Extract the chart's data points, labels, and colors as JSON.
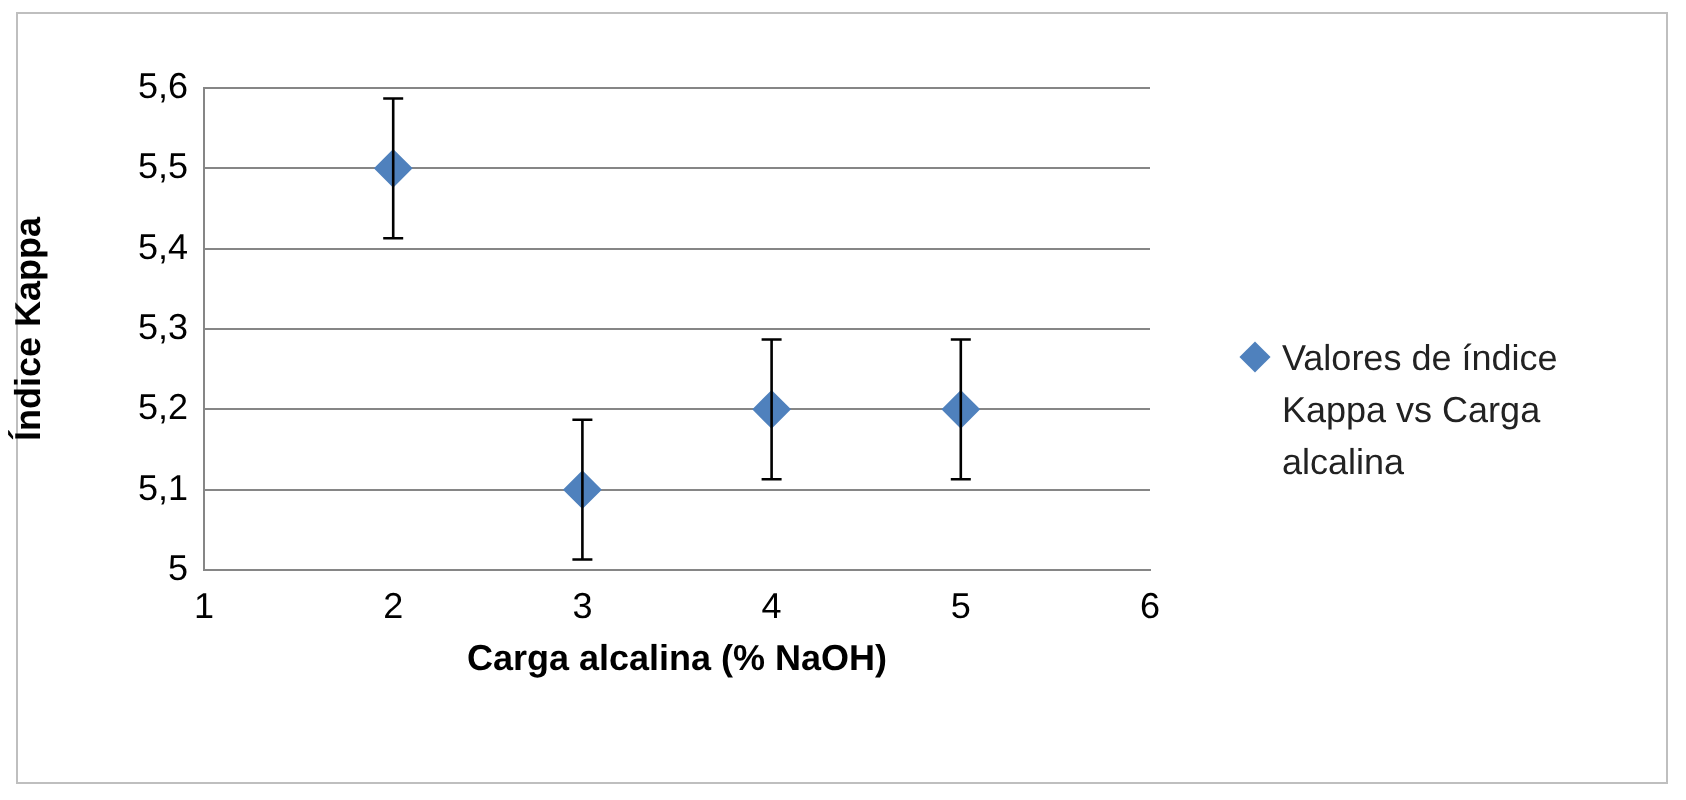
{
  "chart_data": {
    "type": "scatter",
    "xlabel": "Carga alcalina (% NaOH)",
    "ylabel": "Índice Kappa",
    "xlim": [
      1,
      6
    ],
    "xticks": [
      1,
      2,
      3,
      4,
      5,
      6
    ],
    "ylim": [
      5,
      5.6
    ],
    "yticks": [
      5,
      {
        "value": 5.1,
        "label": "5,1"
      },
      {
        "value": 5.2,
        "label": "5,2"
      },
      {
        "value": 5.3,
        "label": "5,3"
      },
      {
        "value": 5.4,
        "label": "5,4"
      },
      {
        "value": 5.5,
        "label": "5,5"
      },
      {
        "value": 5.6,
        "label": "5,6"
      }
    ],
    "grid": "y",
    "legend": "right",
    "marker": "diamond",
    "series": [
      {
        "name": "Valores de índice Kappa vs Carga alcalina",
        "color": "#4f81bd",
        "x": [
          2,
          3,
          4,
          5
        ],
        "values": [
          5.5,
          5.1,
          5.2,
          5.2
        ],
        "errors": [
          0.087,
          0.087,
          0.087,
          0.087
        ]
      }
    ]
  }
}
